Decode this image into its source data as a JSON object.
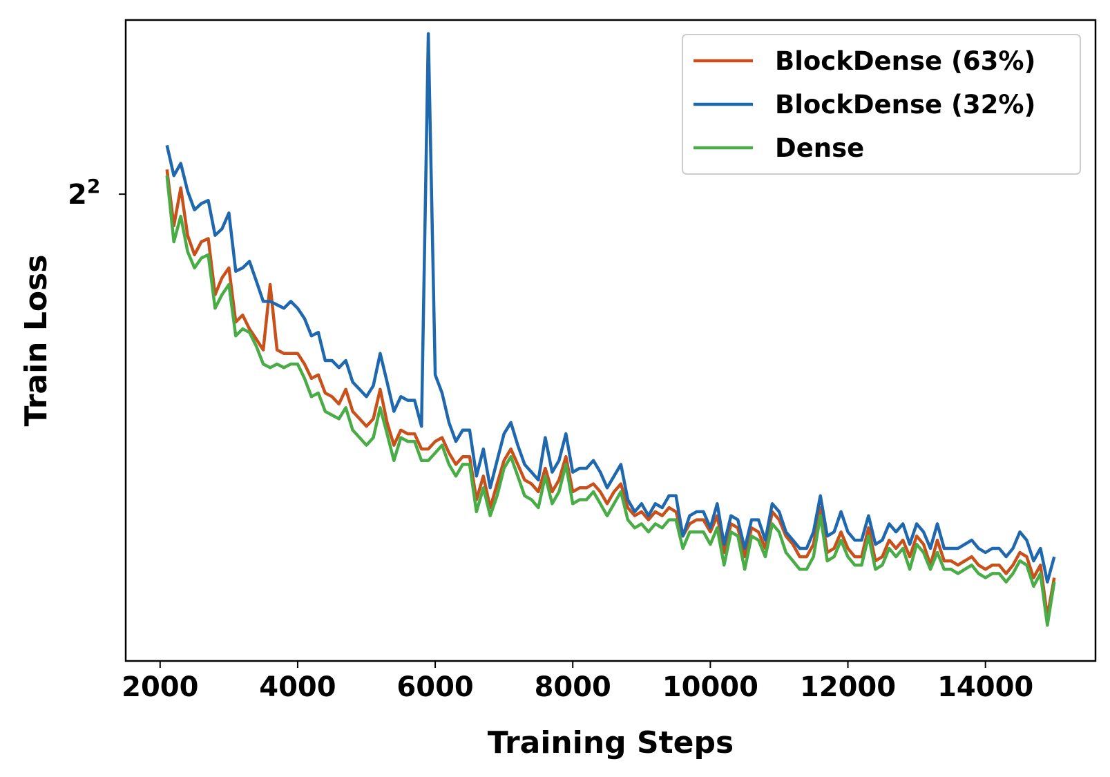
{
  "chart_data": {
    "type": "line",
    "xlabel": "Training Steps",
    "ylabel": "Train Loss",
    "yscale": "log2",
    "xlim": [
      1500,
      15600
    ],
    "ylim": [
      2.75,
      4.6
    ],
    "xticks": [
      2000,
      4000,
      6000,
      8000,
      10000,
      12000,
      14000
    ],
    "xtick_labels": [
      "2000",
      "4000",
      "6000",
      "8000",
      "10000",
      "12000",
      "14000"
    ],
    "yticks": [
      4
    ],
    "ytick_labels": [
      {
        "base": "2",
        "exp": "2"
      }
    ],
    "grid": false,
    "legend_position": "top-right",
    "x": [
      2100,
      2200,
      2300,
      2400,
      2500,
      2600,
      2700,
      2800,
      2900,
      3000,
      3100,
      3200,
      3300,
      3400,
      3500,
      3600,
      3700,
      3800,
      3900,
      4000,
      4100,
      4200,
      4300,
      4400,
      4500,
      4600,
      4700,
      4800,
      4900,
      5000,
      5100,
      5200,
      5300,
      5400,
      5500,
      5600,
      5700,
      5800,
      5900,
      6000,
      6100,
      6200,
      6300,
      6400,
      6500,
      6600,
      6700,
      6800,
      6900,
      7000,
      7100,
      7200,
      7300,
      7400,
      7500,
      7600,
      7700,
      7800,
      7900,
      8000,
      8100,
      8200,
      8300,
      8400,
      8500,
      8600,
      8700,
      8800,
      8900,
      9000,
      9100,
      9200,
      9300,
      9400,
      9500,
      9600,
      9700,
      9800,
      9900,
      10000,
      10100,
      10200,
      10300,
      10400,
      10500,
      10600,
      10700,
      10800,
      10900,
      11000,
      11100,
      11200,
      11300,
      11400,
      11500,
      11600,
      11700,
      11800,
      11900,
      12000,
      12100,
      12200,
      12300,
      12400,
      12500,
      12600,
      12700,
      12800,
      12900,
      13000,
      13100,
      13200,
      13300,
      13400,
      13500,
      13600,
      13700,
      13800,
      13900,
      14000,
      14100,
      14200,
      14300,
      14400,
      14500,
      14600,
      14700,
      14800,
      14900,
      15000
    ],
    "series": [
      {
        "name": "BlockDense (63%)",
        "color": "#c8511b",
        "values": [
          4.08,
          3.9,
          4.02,
          3.87,
          3.81,
          3.85,
          3.86,
          3.69,
          3.74,
          3.77,
          3.61,
          3.63,
          3.59,
          3.56,
          3.53,
          3.72,
          3.53,
          3.52,
          3.52,
          3.52,
          3.49,
          3.45,
          3.46,
          3.41,
          3.4,
          3.38,
          3.42,
          3.36,
          3.34,
          3.32,
          3.34,
          3.42,
          3.33,
          3.27,
          3.31,
          3.3,
          3.3,
          3.26,
          3.26,
          3.28,
          3.29,
          3.25,
          3.22,
          3.24,
          3.24,
          3.13,
          3.19,
          3.11,
          3.17,
          3.23,
          3.26,
          3.22,
          3.18,
          3.17,
          3.15,
          3.21,
          3.15,
          3.18,
          3.24,
          3.15,
          3.16,
          3.16,
          3.17,
          3.15,
          3.12,
          3.15,
          3.17,
          3.11,
          3.09,
          3.1,
          3.08,
          3.1,
          3.09,
          3.11,
          3.1,
          3.04,
          3.07,
          3.08,
          3.08,
          3.05,
          3.09,
          3.0,
          3.07,
          3.06,
          2.99,
          3.06,
          3.05,
          3.01,
          3.1,
          3.08,
          3.04,
          3.02,
          2.99,
          2.99,
          3.02,
          3.11,
          3.0,
          3.01,
          3.05,
          3.01,
          2.99,
          2.99,
          3.06,
          2.98,
          2.99,
          3.03,
          3.01,
          3.03,
          2.99,
          3.04,
          3.02,
          2.97,
          3.03,
          2.98,
          2.98,
          2.97,
          2.98,
          2.99,
          2.97,
          2.96,
          2.97,
          2.97,
          2.95,
          2.97,
          3.0,
          2.99,
          2.94,
          2.97,
          2.85,
          2.94
        ]
      },
      {
        "name": "BlockDense (32%)",
        "color": "#1f68ad",
        "values": [
          4.16,
          4.06,
          4.1,
          4.01,
          3.95,
          3.97,
          3.98,
          3.87,
          3.89,
          3.94,
          3.76,
          3.77,
          3.79,
          3.73,
          3.67,
          3.67,
          3.66,
          3.65,
          3.67,
          3.65,
          3.62,
          3.57,
          3.58,
          3.5,
          3.5,
          3.48,
          3.5,
          3.44,
          3.42,
          3.4,
          3.43,
          3.52,
          3.44,
          3.36,
          3.4,
          3.39,
          3.39,
          3.32,
          4.55,
          3.46,
          3.41,
          3.33,
          3.28,
          3.31,
          3.31,
          3.19,
          3.26,
          3.16,
          3.23,
          3.3,
          3.33,
          3.27,
          3.22,
          3.2,
          3.18,
          3.29,
          3.2,
          3.23,
          3.3,
          3.2,
          3.21,
          3.21,
          3.23,
          3.2,
          3.16,
          3.19,
          3.22,
          3.13,
          3.1,
          3.12,
          3.09,
          3.12,
          3.11,
          3.14,
          3.14,
          3.04,
          3.09,
          3.1,
          3.1,
          3.06,
          3.12,
          3.02,
          3.09,
          3.08,
          3.01,
          3.08,
          3.08,
          3.03,
          3.12,
          3.1,
          3.05,
          3.03,
          3.01,
          3.01,
          3.05,
          3.14,
          3.04,
          3.05,
          3.1,
          3.05,
          3.03,
          3.03,
          3.09,
          3.02,
          3.03,
          3.07,
          3.05,
          3.07,
          3.02,
          3.07,
          3.05,
          3.01,
          3.07,
          3.01,
          3.01,
          3.01,
          3.02,
          3.03,
          3.01,
          3.0,
          3.01,
          3.01,
          2.99,
          3.01,
          3.05,
          3.03,
          2.98,
          3.01,
          2.93,
          2.99
        ]
      },
      {
        "name": "Dense",
        "color": "#4aac47",
        "values": [
          4.06,
          3.85,
          3.93,
          3.82,
          3.77,
          3.8,
          3.81,
          3.65,
          3.69,
          3.72,
          3.57,
          3.59,
          3.58,
          3.54,
          3.49,
          3.48,
          3.49,
          3.48,
          3.49,
          3.49,
          3.45,
          3.4,
          3.41,
          3.36,
          3.35,
          3.34,
          3.37,
          3.31,
          3.29,
          3.27,
          3.29,
          3.37,
          3.3,
          3.23,
          3.29,
          3.28,
          3.28,
          3.23,
          3.23,
          3.25,
          3.27,
          3.22,
          3.19,
          3.22,
          3.22,
          3.1,
          3.16,
          3.09,
          3.14,
          3.21,
          3.24,
          3.19,
          3.14,
          3.13,
          3.11,
          3.19,
          3.12,
          3.15,
          3.22,
          3.12,
          3.13,
          3.13,
          3.15,
          3.12,
          3.09,
          3.12,
          3.15,
          3.08,
          3.06,
          3.07,
          3.05,
          3.07,
          3.06,
          3.08,
          3.08,
          3.01,
          3.05,
          3.05,
          3.05,
          3.02,
          3.06,
          2.97,
          3.05,
          3.04,
          2.96,
          3.04,
          3.03,
          2.99,
          3.07,
          3.05,
          3.0,
          2.98,
          2.96,
          2.96,
          2.99,
          3.09,
          2.98,
          2.99,
          3.03,
          2.99,
          2.97,
          2.97,
          3.04,
          2.96,
          2.97,
          3.01,
          2.99,
          3.01,
          2.96,
          3.02,
          3.0,
          2.96,
          3.0,
          2.96,
          2.96,
          2.95,
          2.96,
          2.97,
          2.95,
          2.94,
          2.95,
          2.95,
          2.93,
          2.95,
          2.98,
          2.97,
          2.92,
          2.95,
          2.83,
          2.93
        ]
      }
    ]
  }
}
